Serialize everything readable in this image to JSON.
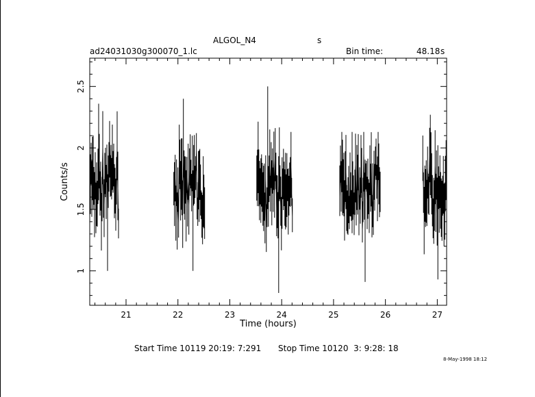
{
  "header": {
    "object": "ALGOL_N4",
    "object_unit": "s",
    "filename": "ad24031030g300070_1.lc",
    "bin_time_label": "Bin time:",
    "bin_time_value": "48.18",
    "bin_time_unit": "s"
  },
  "footer": {
    "start_label": "Start Time 10119 20:19: 7:291",
    "stop_label": "Stop Time 10120  3: 9:28: 18",
    "date_stamp": "8-May-1998 18:12"
  },
  "colors": {
    "trace": "#000000",
    "axes": "#000000",
    "background": "#ffffff"
  },
  "chart_data": {
    "type": "line",
    "title": "ALGOL_N4",
    "xlabel": "Time (hours)",
    "ylabel": "Counts/s",
    "xlim": [
      20.3,
      27.18
    ],
    "ylim": [
      0.72,
      2.73
    ],
    "x_ticks": [
      21,
      22,
      23,
      24,
      25,
      26,
      27
    ],
    "y_ticks": [
      1,
      1.5,
      2,
      2.5
    ],
    "grid": false,
    "series": [
      {
        "segments": [
          {
            "x_start": 20.3,
            "x_end": 20.86,
            "low_min": 1.0,
            "high_max": 2.36,
            "center": 1.7
          },
          {
            "x_start": 21.92,
            "x_end": 22.52,
            "low_min": 1.0,
            "high_max": 2.4,
            "center": 1.66
          },
          {
            "x_start": 23.52,
            "x_end": 24.21,
            "low_min": 0.82,
            "high_max": 2.5,
            "center": 1.65
          },
          {
            "x_start": 25.12,
            "x_end": 25.9,
            "low_min": 0.91,
            "high_max": 2.13,
            "center": 1.66
          },
          {
            "x_start": 26.72,
            "x_end": 27.18,
            "low_min": 0.93,
            "high_max": 2.27,
            "center": 1.65
          }
        ]
      }
    ]
  }
}
